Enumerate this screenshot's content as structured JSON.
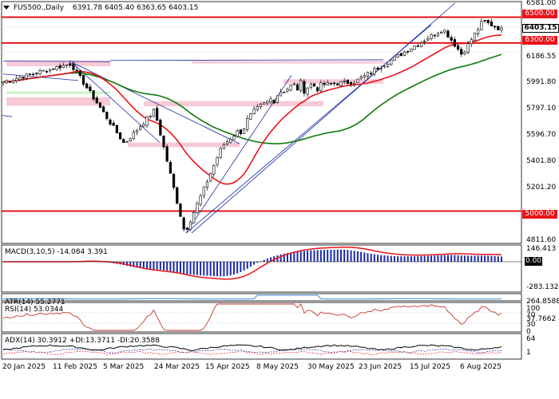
{
  "header": {
    "symbol": "FUS500.,Daily",
    "ohlc": "6391.78 6405.40 6363.65 6403.15"
  },
  "price_axis": {
    "ticks": [
      "6581.00",
      "6186.55",
      "5991.80",
      "5797.10",
      "5596.70",
      "5401.80",
      "5201.20",
      "4811.60"
    ],
    "last_price": "6403.15"
  },
  "levels": [
    {
      "label": "6500.00",
      "value": 6500,
      "color": "#e8131a"
    },
    {
      "label": "6300.00",
      "value": 6300,
      "color": "#e8131a"
    },
    {
      "label": "5000.00",
      "value": 5000,
      "color": "#e8131a"
    }
  ],
  "macd": {
    "label": "MACD(3,10,5) -14.084 3.391",
    "ticks": [
      "146.413",
      "0.00",
      "-283.132"
    ]
  },
  "atr": {
    "label": "ATR(14) 55.2771",
    "ticks": [
      "264.8588",
      "37.7662"
    ]
  },
  "rsi": {
    "label": "RSI(14) 53.0344",
    "ticks": [
      "100",
      "70",
      "30",
      "0"
    ]
  },
  "adx": {
    "label": "ADX(14) 30.3912 +DI:13.3711 -DI:20.3588",
    "ticks": [
      "64",
      "1"
    ]
  },
  "date_labels": [
    "20 Jan 2025",
    "11 Feb 2025",
    "5 Mar 2025",
    "24 Mar 2025",
    "15 Apr 2025",
    "8 May 2025",
    "30 May 2025",
    "23 Jun 2025",
    "15 Jul 2025",
    "6 Aug 2025"
  ],
  "colors": {
    "bull": "#000000",
    "bear": "#000000",
    "ma_fast": "#e8131a",
    "ma_slow": "#0a7a0a",
    "trendline": "#1a2aa8",
    "zone_pink": "#f6c1cf",
    "zone_green": "#c6f2c0",
    "macd_hist": "#1a2aa8",
    "macd_signal": "#e8131a",
    "atr_line": "#3d8ed8",
    "rsi_line": "#c0392b",
    "adx_line": "#000000"
  },
  "chart_data": {
    "type": "candlestick",
    "ylim": [
      4750,
      6620
    ],
    "levels": [
      6500,
      6300,
      5000
    ],
    "last_price": 6403.15,
    "key_prices": [
      {
        "date": "2025-01-20",
        "price": 6000
      },
      {
        "date": "2025-02-18",
        "price": 6140
      },
      {
        "date": "2025-03-13",
        "price": 5520
      },
      {
        "date": "2025-03-26",
        "price": 5780
      },
      {
        "date": "2025-04-08",
        "price": 4830
      },
      {
        "date": "2025-04-24",
        "price": 5500
      },
      {
        "date": "2025-05-20",
        "price": 5950
      },
      {
        "date": "2025-06-20",
        "price": 6000
      },
      {
        "date": "2025-07-28",
        "price": 6410
      },
      {
        "date": "2025-08-05",
        "price": 6210
      },
      {
        "date": "2025-08-14",
        "price": 6470
      },
      {
        "date": "2025-08-22",
        "price": 6403
      }
    ],
    "indicators": {
      "MACD(3,10,5)": [
        -14.084,
        3.391
      ],
      "ATR(14)": 55.2771,
      "RSI(14)": 53.0344,
      "ADX(14)": {
        "ADX": 30.3912,
        "+DI": 13.3711,
        "-DI": 20.3588
      }
    }
  }
}
